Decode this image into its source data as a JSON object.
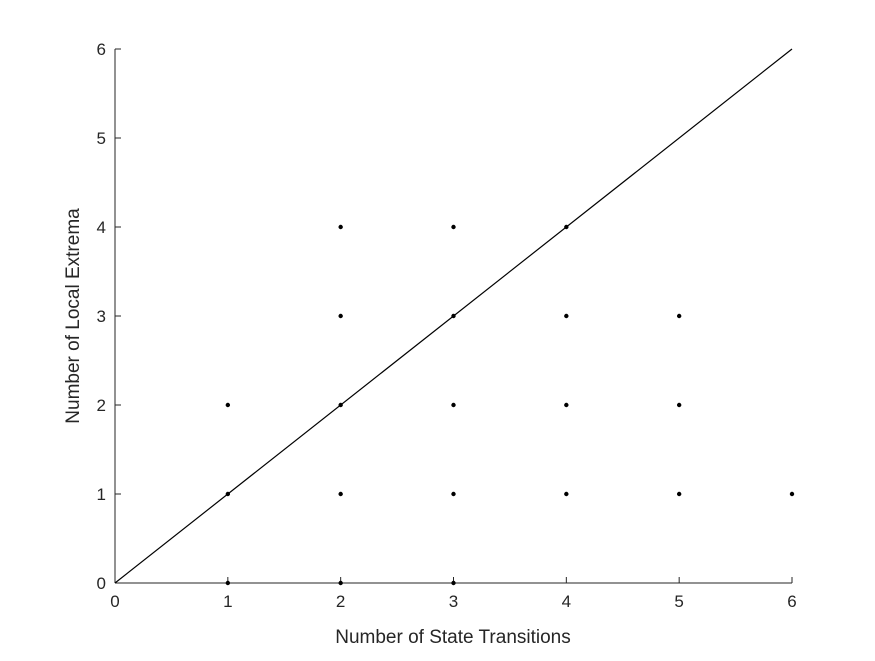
{
  "chart_data": {
    "type": "scatter",
    "title": "",
    "xlabel": "Number of State Transitions",
    "ylabel": "Number of Local Extrema",
    "xlim": [
      0,
      6
    ],
    "ylim": [
      0,
      6
    ],
    "x_ticks": [
      "0",
      "1",
      "2",
      "3",
      "4",
      "5",
      "6"
    ],
    "y_ticks": [
      "0",
      "1",
      "2",
      "3",
      "4",
      "5",
      "6"
    ],
    "grid": false,
    "legend": "none",
    "series": [
      {
        "type": "scatter",
        "color": "#000000",
        "points": [
          [
            1,
            0
          ],
          [
            2,
            0
          ],
          [
            3,
            0
          ],
          [
            1,
            1
          ],
          [
            2,
            1
          ],
          [
            3,
            1
          ],
          [
            4,
            1
          ],
          [
            5,
            1
          ],
          [
            6,
            1
          ],
          [
            1,
            2
          ],
          [
            2,
            2
          ],
          [
            3,
            2
          ],
          [
            4,
            2
          ],
          [
            5,
            2
          ],
          [
            2,
            3
          ],
          [
            3,
            3
          ],
          [
            4,
            3
          ],
          [
            5,
            3
          ],
          [
            2,
            4
          ],
          [
            3,
            4
          ],
          [
            4,
            4
          ]
        ]
      },
      {
        "type": "line",
        "color": "#000000",
        "x": [
          0,
          6
        ],
        "y": [
          0,
          6
        ]
      }
    ]
  }
}
